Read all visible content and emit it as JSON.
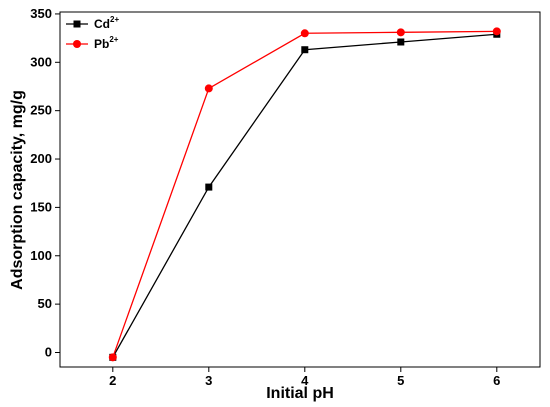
{
  "chart_data": {
    "type": "line",
    "xlabel": "Initial pH",
    "ylabel": "Adsorption capacity, mg/g",
    "x": [
      2,
      3,
      4,
      5,
      6
    ],
    "xlim": [
      1.45,
      6.45
    ],
    "ylim": [
      -15,
      352
    ],
    "xticks": [
      "2",
      "3",
      "4",
      "5",
      "6"
    ],
    "yticks": [
      "0",
      "50",
      "100",
      "150",
      "200",
      "250",
      "300",
      "350"
    ],
    "series": [
      {
        "name": "Cd",
        "superscript": "2+",
        "color": "#000000",
        "marker": "square",
        "values": [
          -5,
          171,
          313,
          321,
          329
        ]
      },
      {
        "name": "Pb",
        "superscript": "2+",
        "color": "#ff0000",
        "marker": "circle",
        "values": [
          -5,
          273,
          330,
          331,
          332
        ]
      }
    ],
    "legend_position": "top-left",
    "grid": false
  }
}
